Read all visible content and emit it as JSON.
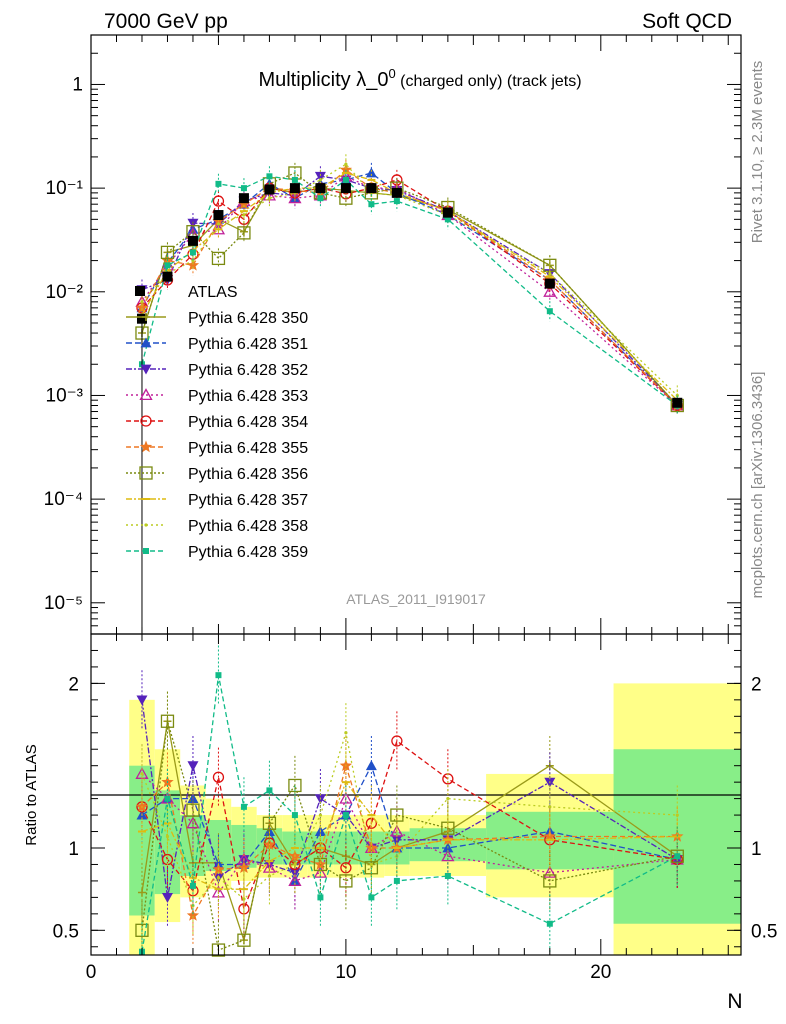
{
  "header": {
    "left": "7000 GeV pp",
    "right": "Soft QCD"
  },
  "title": {
    "main": "Multiplicity λ_0",
    "sup": "0",
    "small": " (charged only) (track jets)"
  },
  "side_labels": {
    "rivet": "Rivet 3.1.10, ≥ 2.3M events",
    "mcplots": "mcplots.cern.ch [arXiv:1306.3436]"
  },
  "watermark": "ATLAS_2011_I919017",
  "chart_data": [
    {
      "type": "line",
      "panel": "main",
      "yscale": "log",
      "ylim": [
        5e-06,
        3
      ],
      "xlim": [
        0,
        25.5
      ],
      "xlabel": "N",
      "ylabel": "",
      "title": "Multiplicity λ_0^0 (charged only) (track jets)",
      "y_tick_labels": [
        "1",
        "10⁻¹",
        "10⁻²",
        "10⁻³",
        "10⁻⁴",
        "10⁻⁵"
      ],
      "reference": {
        "name": "ATLAS",
        "color": "#000000",
        "x": [
          2,
          3,
          4,
          5,
          6,
          7,
          8,
          9,
          10,
          11,
          12,
          14,
          18,
          23
        ],
        "y": [
          0.0055,
          0.014,
          0.031,
          0.055,
          0.08,
          0.097,
          0.1,
          0.1,
          0.1,
          0.1,
          0.09,
          0.058,
          0.012,
          0.00085
        ]
      },
      "series": [
        {
          "name": "Pythia 6.428 350",
          "color": "#9a9a1a",
          "marker": "cross",
          "dash": "",
          "y": [
            0.004,
            0.024,
            0.028,
            0.05,
            0.038,
            0.1,
            0.09,
            0.1,
            0.095,
            0.09,
            0.085,
            0.062,
            0.018,
            0.0008
          ]
        },
        {
          "name": "Pythia 6.428 351",
          "color": "#2050c8",
          "marker": "tri-up",
          "dash": "6,3",
          "y": [
            0.007,
            0.019,
            0.04,
            0.05,
            0.07,
            0.11,
            0.08,
            0.11,
            0.12,
            0.14,
            0.09,
            0.055,
            0.013,
            0.0008
          ]
        },
        {
          "name": "Pythia 6.428 352",
          "color": "#5522bb",
          "marker": "tri-down",
          "dash": "6,2,2,2",
          "y": [
            0.0105,
            0.013,
            0.046,
            0.045,
            0.075,
            0.09,
            0.085,
            0.13,
            0.12,
            0.1,
            0.095,
            0.06,
            0.015,
            0.0008
          ]
        },
        {
          "name": "Pythia 6.428 353",
          "color": "#c0209a",
          "marker": "tri-open",
          "dash": "2,3",
          "y": [
            0.008,
            0.018,
            0.036,
            0.04,
            0.075,
            0.085,
            0.08,
            0.085,
            0.13,
            0.1,
            0.1,
            0.055,
            0.01,
            0.0008
          ]
        },
        {
          "name": "Pythia 6.428 354",
          "color": "#dd1111",
          "marker": "circle-open",
          "dash": "5,3",
          "y": [
            0.007,
            0.013,
            0.023,
            0.075,
            0.05,
            0.1,
            0.09,
            0.1,
            0.088,
            0.1,
            0.12,
            0.06,
            0.012,
            0.0008
          ]
        },
        {
          "name": "Pythia 6.428 355",
          "color": "#ee7722",
          "marker": "star",
          "dash": "5,3",
          "y": [
            0.007,
            0.02,
            0.018,
            0.048,
            0.07,
            0.1,
            0.095,
            0.09,
            0.15,
            0.1,
            0.09,
            0.06,
            0.013,
            0.0008
          ]
        },
        {
          "name": "Pythia 6.428 356",
          "color": "#7a8a10",
          "marker": "square-open",
          "dash": "2,2",
          "y": [
            0.004,
            0.024,
            0.038,
            0.021,
            0.037,
            0.11,
            0.14,
            0.09,
            0.08,
            0.09,
            0.1,
            0.065,
            0.018,
            0.0008
          ]
        },
        {
          "name": "Pythia 6.428 357",
          "color": "#ddbb11",
          "marker": "dash",
          "dash": "6,2,2,2",
          "y": [
            0.006,
            0.016,
            0.025,
            0.04,
            0.06,
            0.09,
            0.1,
            0.1,
            0.14,
            0.12,
            0.09,
            0.06,
            0.014,
            0.0009
          ]
        },
        {
          "name": "Pythia 6.428 358",
          "color": "#bbcc22",
          "marker": "dot",
          "dash": "2,3",
          "y": [
            0.008,
            0.015,
            0.02,
            0.045,
            0.055,
            0.08,
            0.09,
            0.12,
            0.17,
            0.09,
            0.085,
            0.055,
            0.015,
            0.001
          ]
        },
        {
          "name": "Pythia 6.428 359",
          "color": "#11bb88",
          "marker": "square-filled",
          "dash": "5,3",
          "y": [
            0.002,
            0.018,
            0.024,
            0.11,
            0.1,
            0.13,
            0.12,
            0.08,
            0.12,
            0.07,
            0.075,
            0.05,
            0.0065,
            0.0008
          ]
        }
      ]
    },
    {
      "type": "line",
      "panel": "ratio",
      "ylabel": "Ratio to ATLAS",
      "xlabel": "N",
      "ylim": [
        0.35,
        2.3
      ],
      "xlim": [
        0,
        25.5
      ],
      "y_tick_labels": [
        "2",
        "1",
        "0.5"
      ],
      "x_tick_labels": [
        "0",
        "10",
        "20"
      ],
      "bands": [
        {
          "x0": 1.5,
          "x1": 2.5,
          "inner": [
            0.59,
            1.5
          ],
          "outer": [
            0.35,
            1.9
          ]
        },
        {
          "x0": 2.5,
          "x1": 3.5,
          "inner": [
            0.72,
            1.35
          ],
          "outer": [
            0.55,
            1.6
          ]
        },
        {
          "x0": 3.5,
          "x1": 4.5,
          "inner": [
            0.83,
            1.2
          ],
          "outer": [
            0.7,
            1.38
          ]
        },
        {
          "x0": 4.5,
          "x1": 5.5,
          "inner": [
            0.86,
            1.17
          ],
          "outer": [
            0.75,
            1.3
          ]
        },
        {
          "x0": 5.5,
          "x1": 6.5,
          "inner": [
            0.88,
            1.14
          ],
          "outer": [
            0.8,
            1.25
          ]
        },
        {
          "x0": 6.5,
          "x1": 7.5,
          "inner": [
            0.9,
            1.12
          ],
          "outer": [
            0.82,
            1.2
          ]
        },
        {
          "x0": 7.5,
          "x1": 8.5,
          "inner": [
            0.9,
            1.1
          ],
          "outer": [
            0.82,
            1.2
          ]
        },
        {
          "x0": 8.5,
          "x1": 9.5,
          "inner": [
            0.9,
            1.1
          ],
          "outer": [
            0.82,
            1.2
          ]
        },
        {
          "x0": 9.5,
          "x1": 10.5,
          "inner": [
            0.9,
            1.1
          ],
          "outer": [
            0.82,
            1.2
          ]
        },
        {
          "x0": 10.5,
          "x1": 11.5,
          "inner": [
            0.9,
            1.1
          ],
          "outer": [
            0.82,
            1.2
          ]
        },
        {
          "x0": 11.5,
          "x1": 12.5,
          "inner": [
            0.9,
            1.1
          ],
          "outer": [
            0.83,
            1.2
          ]
        },
        {
          "x0": 12.5,
          "x1": 15.5,
          "inner": [
            0.92,
            1.12
          ],
          "outer": [
            0.83,
            1.2
          ]
        },
        {
          "x0": 15.5,
          "x1": 20.5,
          "inner": [
            0.87,
            1.22
          ],
          "outer": [
            0.7,
            1.45
          ]
        },
        {
          "x0": 20.5,
          "x1": 25.5,
          "inner": [
            0.54,
            1.6
          ],
          "outer": [
            0.35,
            2.0
          ]
        }
      ],
      "x": [
        2,
        3,
        4,
        5,
        6,
        7,
        8,
        9,
        10,
        11,
        12,
        14,
        18,
        23
      ],
      "ratios": [
        [
          0.73,
          1.77,
          0.91,
          0.91,
          0.44,
          1.15,
          0.9,
          1.0,
          0.95,
          0.9,
          1.0,
          1.1,
          1.5,
          0.95
        ],
        [
          1.2,
          1.3,
          1.3,
          0.9,
          0.9,
          1.1,
          0.8,
          1.1,
          1.2,
          1.5,
          1.0,
          1.0,
          1.1,
          0.93
        ],
        [
          1.9,
          0.7,
          1.5,
          0.82,
          0.93,
          0.9,
          0.85,
          1.3,
          1.2,
          1.0,
          1.05,
          1.05,
          1.4,
          0.93
        ],
        [
          1.45,
          1.3,
          1.15,
          0.73,
          0.93,
          0.88,
          0.8,
          0.85,
          1.3,
          1.0,
          1.1,
          0.95,
          0.85,
          0.93
        ],
        [
          1.25,
          0.93,
          0.74,
          1.43,
          0.63,
          1.03,
          0.9,
          1.0,
          0.88,
          1.15,
          1.65,
          1.42,
          1.05,
          0.93
        ],
        [
          1.25,
          1.4,
          0.59,
          0.87,
          0.88,
          1.02,
          0.95,
          0.9,
          1.5,
          1.0,
          1.0,
          1.05,
          1.07,
          1.07
        ],
        [
          0.5,
          1.77,
          1.23,
          0.38,
          0.44,
          1.15,
          1.38,
          0.9,
          0.8,
          0.88,
          1.2,
          1.12,
          0.8,
          0.95
        ],
        [
          1.1,
          1.15,
          0.82,
          0.75,
          0.75,
          0.92,
          1.0,
          1.0,
          1.4,
          1.2,
          1.0,
          1.05,
          1.05,
          1.07
        ],
        [
          1.45,
          1.07,
          0.65,
          0.82,
          0.69,
          0.83,
          0.9,
          1.2,
          1.7,
          0.9,
          0.95,
          1.3,
          1.25,
          1.2
        ],
        [
          0.37,
          1.3,
          0.77,
          2.05,
          1.25,
          1.35,
          1.2,
          0.7,
          1.2,
          0.7,
          0.8,
          0.83,
          0.54,
          0.95
        ]
      ]
    }
  ]
}
